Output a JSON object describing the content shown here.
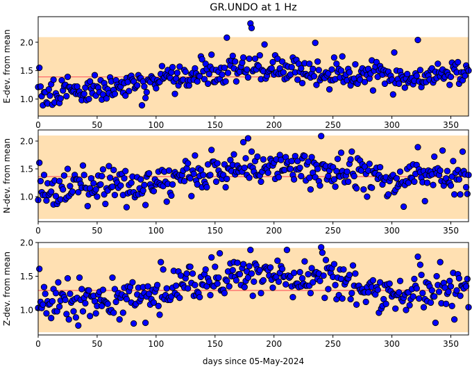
{
  "figure": {
    "title": "GR.UNDO at 1 Hz",
    "xlabel": "days since 05-May-2024"
  },
  "chart_data": [
    {
      "type": "scatter",
      "ylabel": "E-dev. from mean",
      "xlim": [
        0,
        365
      ],
      "ylim": [
        0.7,
        2.45
      ],
      "xticks": [
        0,
        50,
        100,
        150,
        200,
        250,
        300,
        350
      ],
      "yticks": [
        1.0,
        1.5,
        2.0
      ],
      "ytick_labels": [
        "1.0",
        "1.5",
        "2.0"
      ],
      "band": [
        0.7,
        2.09
      ],
      "mean_line": 1.39,
      "series": [
        {
          "x": [],
          "y": []
        }
      ]
    },
    {
      "type": "scatter",
      "ylabel": "N-dev. from mean",
      "xlim": [
        0,
        365
      ],
      "ylim": [
        0.55,
        2.2
      ],
      "xticks": [
        0,
        50,
        100,
        150,
        200,
        250,
        300,
        350
      ],
      "yticks": [
        1.0,
        1.5,
        2.0
      ],
      "ytick_labels": [
        "1.0",
        "1.5",
        "2.0"
      ],
      "band": [
        0.6,
        2.1
      ],
      "mean_line": 1.36,
      "series": [
        {
          "x": [],
          "y": []
        }
      ]
    },
    {
      "type": "scatter",
      "ylabel": "Z-dev. from mean",
      "xlim": [
        0,
        365
      ],
      "ylim": [
        0.63,
        2.0
      ],
      "xticks": [
        0,
        50,
        100,
        150,
        200,
        250,
        300,
        350
      ],
      "yticks": [
        1.0,
        1.5,
        2.0
      ],
      "ytick_labels": [
        "1.0",
        "1.5",
        "2.0"
      ],
      "band": [
        0.67,
        1.92
      ],
      "mean_line": 1.29,
      "series": [
        {
          "x": [],
          "y": []
        }
      ]
    }
  ],
  "colors": {
    "band": "#ffe0b2",
    "mean_line": "#ff6b6b",
    "marker_fill": "#0000ff",
    "marker_edge": "#000000"
  }
}
